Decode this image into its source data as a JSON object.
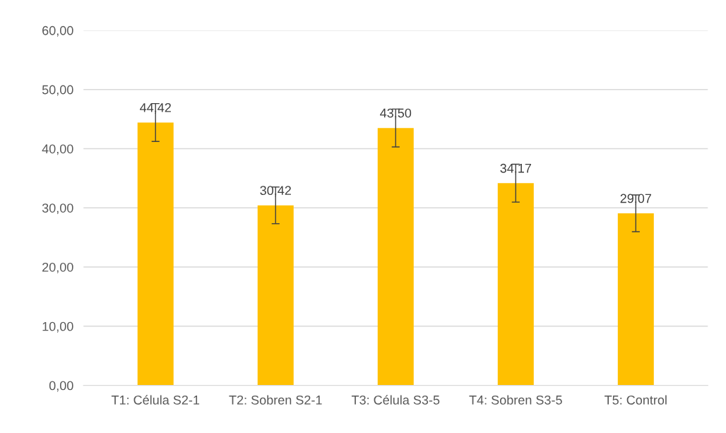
{
  "chart_data": {
    "type": "bar",
    "categories": [
      "T1: Célula S2-1",
      "T2: Sobren S2-1",
      "T3: Célula S3-5",
      "T4: Sobren S3-5",
      "T5: Control"
    ],
    "values": [
      44.42,
      30.42,
      43.5,
      34.17,
      29.07
    ],
    "value_labels": [
      "44,42",
      "30,42",
      "43,50",
      "34,17",
      "29,07"
    ],
    "errors": [
      3.2,
      3.1,
      3.2,
      3.2,
      3.1
    ],
    "color": "#ffc000",
    "ylim": [
      0,
      60
    ],
    "yticks": [
      {
        "value": 0,
        "label": "0,00"
      },
      {
        "value": 10,
        "label": "10,00"
      },
      {
        "value": 20,
        "label": "20,00"
      },
      {
        "value": 30,
        "label": "30,00"
      },
      {
        "value": 40,
        "label": "40,00"
      },
      {
        "value": 50,
        "label": "50,00"
      },
      {
        "value": 60,
        "label": "60,00"
      }
    ],
    "grid": "y"
  }
}
